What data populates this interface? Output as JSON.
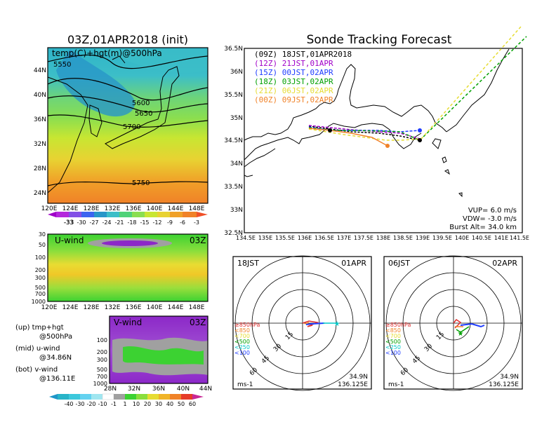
{
  "main_title": "03Z,01APR2018 (init)",
  "track_title": "Sonde Tracking Forecast",
  "map_panel": {
    "label": "temp(C)+hgt(m)@500hPa",
    "lat_ticks": [
      "44N",
      "40N",
      "36N",
      "32N",
      "28N",
      "24N"
    ],
    "lon_ticks": [
      "120E",
      "124E",
      "128E",
      "132E",
      "136E",
      "140E",
      "144E",
      "148E"
    ],
    "contour_labels": [
      "5550",
      "5600",
      "5650",
      "5700",
      "5750"
    ],
    "colorbar": [
      "-33",
      "-30",
      "-27",
      "-24",
      "-21",
      "-18",
      "-15",
      "-12",
      "-9",
      "-6",
      "-3"
    ]
  },
  "uwind_panel": {
    "label": "U-wind",
    "time": "03Z",
    "p_ticks": [
      "30",
      "50",
      "100",
      "200",
      "300",
      "500",
      "700",
      "1000"
    ],
    "lon_ticks": [
      "120E",
      "124E",
      "128E",
      "132E",
      "136E",
      "140E",
      "144E",
      "148E"
    ]
  },
  "vwind_panel": {
    "label": "V-wind",
    "time": "03Z",
    "p_ticks": [
      "100",
      "200",
      "300",
      "500",
      "700",
      "1000"
    ],
    "lat_ticks": [
      "28N",
      "32N",
      "36N",
      "40N",
      "44N"
    ]
  },
  "legend_text": {
    "up_1": "(up) tmp+hgt",
    "up_2": "@500hPa",
    "mid_1": "(mid) u-wind",
    "mid_2": "@34.86N",
    "bot_1": "(bot) v-wind",
    "bot_2": "@136.11E"
  },
  "bottom_colorbar": [
    "-40",
    "-30",
    "-20",
    "-10",
    "-1",
    "1",
    "10",
    "20",
    "30",
    "40",
    "50",
    "60"
  ],
  "track": {
    "lat_ticks": [
      "36.5N",
      "36N",
      "35.5N",
      "35N",
      "34.5N",
      "34N",
      "33.5N",
      "33N",
      "32.5N"
    ],
    "lon_ticks": [
      "134.5E",
      "135E",
      "135.5E",
      "136E",
      "136.5E",
      "137E",
      "137.5E",
      "138E",
      "138.5E",
      "139E",
      "139.5E",
      "140E",
      "140.5E",
      "141E",
      "141.5E"
    ],
    "legend": [
      {
        "text": "(09Z) 18JST,01APR2018",
        "color": "#000000"
      },
      {
        "text": "(12Z) 21JST,01APR",
        "color": "#a000c8"
      },
      {
        "text": "(15Z) 00JST,02APR",
        "color": "#1e3cff"
      },
      {
        "text": "(18Z) 03JST,02APR",
        "color": "#00a000"
      },
      {
        "text": "(21Z) 06JST,02APR",
        "color": "#e6dc32"
      },
      {
        "text": "(00Z) 09JST,02APR",
        "color": "#f08228"
      }
    ],
    "vup": "VUP= 6.0 m/s",
    "vdw": "VDW= -3.0 m/s",
    "burst": "Burst Alt= 34.0 km"
  },
  "hodo_left": {
    "time": "18JST",
    "date": "01APR",
    "rings": [
      "15",
      "30",
      "45",
      "60"
    ],
    "levels": [
      {
        "text": "≥850hPa",
        "color": "#e03030"
      },
      {
        "text": "<850",
        "color": "#f08228"
      },
      {
        "text": "<700",
        "color": "#e6dc32"
      },
      {
        "text": "<500",
        "color": "#00a000"
      },
      {
        "text": "<250",
        "color": "#00c8c8"
      },
      {
        "text": "<100",
        "color": "#1e3cff"
      }
    ],
    "unit": "ms-1",
    "lat": "34.9N",
    "lon": "136.125E"
  },
  "hodo_right": {
    "time": "06JST",
    "date": "02APR",
    "rings": [
      "15",
      "30",
      "45",
      "60"
    ],
    "levels": [
      {
        "text": "≥850hPa",
        "color": "#e03030"
      },
      {
        "text": "<850",
        "color": "#f08228"
      },
      {
        "text": "<700",
        "color": "#e6dc32"
      },
      {
        "text": "<500",
        "color": "#00a000"
      },
      {
        "text": "<250",
        "color": "#00c8c8"
      },
      {
        "text": "<100",
        "color": "#1e3cff"
      }
    ],
    "unit": "ms-1",
    "lat": "34.9N",
    "lon": "136.125E"
  }
}
